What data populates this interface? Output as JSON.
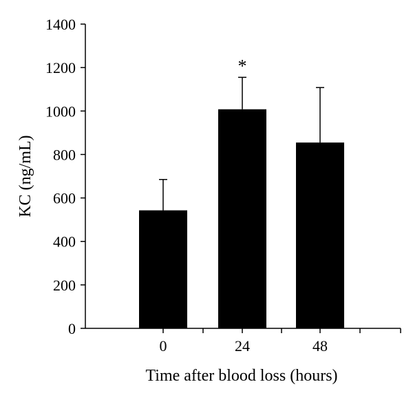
{
  "chart_data": {
    "type": "bar",
    "title": "",
    "xlabel": "Time after blood loss (hours)",
    "ylabel": "KC (ng/mL)",
    "categories": [
      "0",
      "24",
      "48"
    ],
    "values": [
      543,
      1008,
      855
    ],
    "error_upper": [
      685,
      1155,
      1108
    ],
    "annotations": [
      "",
      "*",
      ""
    ],
    "ylim": [
      0,
      1400
    ],
    "yticks": [
      0,
      200,
      400,
      600,
      800,
      1000,
      1200,
      1400
    ],
    "grid": false,
    "legend": "none",
    "bar_color": "#000000"
  }
}
